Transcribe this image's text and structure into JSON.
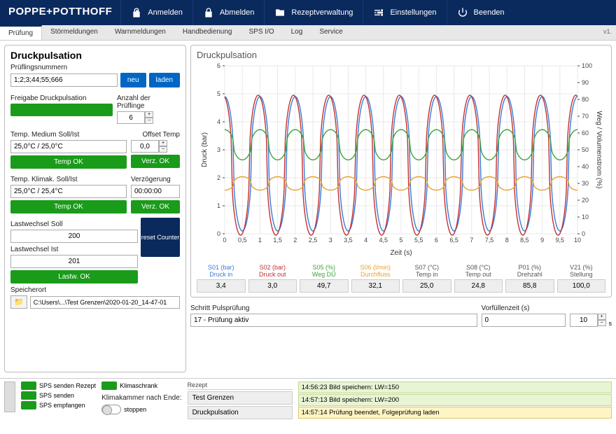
{
  "brand": "POPPE+POTTHOFF",
  "nav": [
    {
      "id": "login",
      "label": "Anmelden",
      "icon": "unlock"
    },
    {
      "id": "logout",
      "label": "Abmelden",
      "icon": "lock"
    },
    {
      "id": "recipes",
      "label": "Rezeptverwaltung",
      "icon": "folder"
    },
    {
      "id": "settings",
      "label": "Einstellungen",
      "icon": "sliders"
    },
    {
      "id": "exit",
      "label": "Beenden",
      "icon": "power"
    }
  ],
  "tabs": [
    "Prüfung",
    "Störmeldungen",
    "Warnmeldungen",
    "Handbedienung",
    "SPS I/O",
    "Log",
    "Service"
  ],
  "active_tab": 0,
  "version": "v1.",
  "panel": {
    "title": "Druckpulsation",
    "specimen_label": "Prüflingsnummern",
    "specimen_value": "1;2;3;44;55;666",
    "btn_new": "neu",
    "btn_load": "laden",
    "release_label": "Freigabe Druckpulsation",
    "count_label": "Anzahl der Prüflinge",
    "count_value": "6",
    "temp_med_label": "Temp. Medium Soll/Ist",
    "offset_label": "Offset Temp",
    "temp_med_value": "25,0°C / 25,0°C",
    "offset_value": "0,0",
    "temp_ok": "Temp OK",
    "verz_ok": "Verz. OK",
    "temp_klim_label": "Temp. Klimak. Soll/Ist",
    "verz_label": "Verzögerung",
    "temp_klim_value": "25,0°C / 25,4°C",
    "verz_value": "00:00:00",
    "lw_soll_label": "Lastwechsel Soll",
    "lw_soll_value": "200",
    "lw_ist_label": "Lastwechsel Ist",
    "lw_ist_value": "201",
    "reset_counter": "reset Counter",
    "lastw_ok": "Lastw. OK",
    "speicherort_label": "Speicherort",
    "speicherort_value": "C:\\Users\\...\\Test Grenzen\\2020-01-20_14-47-01"
  },
  "chart": {
    "title": "Druckpulsation",
    "xlabel": "Zeit (s)",
    "ylabel_left": "Druck (bar)",
    "ylabel_right": "Weg / Volumenstrom (%)",
    "xlim": [
      0,
      10
    ],
    "xtick_step": 0.5,
    "ylim_left": [
      0,
      6
    ],
    "ytick_left_step": 1,
    "ylim_right": [
      0,
      100
    ],
    "ytick_right_step": 10,
    "bg": "#ffffff",
    "grid": "#e8e8e8",
    "series": [
      {
        "id": "S01",
        "name": "S01 (bar)",
        "desc": "Druck in",
        "color": "#3a7ad9",
        "axis": "left",
        "amp": 2.4,
        "mid": 2.5,
        "freq": 1.0,
        "phase": 0
      },
      {
        "id": "S02",
        "name": "S02 (bar)",
        "desc": "Druck out",
        "color": "#c43030",
        "axis": "left",
        "amp": 2.5,
        "mid": 2.45,
        "freq": 1.0,
        "phase": 0.05
      },
      {
        "id": "S05",
        "name": "S05 (%)",
        "desc": "Weg DÜ",
        "color": "#3aa53a",
        "axis": "right",
        "amp": 9,
        "mid": 53,
        "freq": 1.0,
        "phase": 0
      },
      {
        "id": "S06",
        "name": "S06 (l/min)",
        "desc": "Durchfluss",
        "color": "#e8a030",
        "axis": "right",
        "amp": 4,
        "mid": 30,
        "freq": 1.0,
        "phase": 0.5
      }
    ]
  },
  "readouts": [
    {
      "name": "S01 (bar)",
      "desc": "Druck in",
      "color": "#3a7ad9",
      "val": "3,4"
    },
    {
      "name": "S02 (bar)",
      "desc": "Druck out",
      "color": "#c43030",
      "val": "3,0"
    },
    {
      "name": "S05 (%)",
      "desc": "Weg DÜ",
      "color": "#3aa53a",
      "val": "49,7"
    },
    {
      "name": "S06 (l/min)",
      "desc": "Durchfluss",
      "color": "#e8a030",
      "val": "32,1"
    },
    {
      "name": "S07 (°C)",
      "desc": "Temp in",
      "color": "#555",
      "val": "25,0"
    },
    {
      "name": "S08 (°C)",
      "desc": "Temp out",
      "color": "#555",
      "val": "24,8"
    },
    {
      "name": "P01 (%)",
      "desc": "Drehzahl",
      "color": "#555",
      "val": "85,8"
    },
    {
      "name": "V21 (%)",
      "desc": "Stellung",
      "color": "#555",
      "val": "100,0"
    }
  ],
  "below": {
    "schritt_label": "Schritt Pulsprüfung",
    "schritt_value": "17 - Prüfung aktiv",
    "vorfuell_label": "Vorfüllenzeit (s)",
    "vorfuell_value": "0",
    "vorfuell_spin": "10",
    "unit_s": "s"
  },
  "bottom": {
    "status": [
      {
        "label": "SPS senden Rezept"
      },
      {
        "label": "SPS senden"
      },
      {
        "label": "SPS empfangen"
      }
    ],
    "klimaschrank": "Klimaschrank",
    "klima_ende_label": "Klimakammer nach Ende:",
    "klima_ende_val": "stoppen",
    "rezept_label": "Rezept",
    "rezept_items": [
      "Test Grenzen",
      "Druckpulsation"
    ],
    "log": [
      {
        "cls": "g",
        "txt": "14:56:23 Bild speichern: LW=150"
      },
      {
        "cls": "g",
        "txt": "14:57:13 Bild speichern: LW=200"
      },
      {
        "cls": "y",
        "txt": "14:57:14 Prüfung beendet, Folgeprüfung laden"
      }
    ]
  }
}
